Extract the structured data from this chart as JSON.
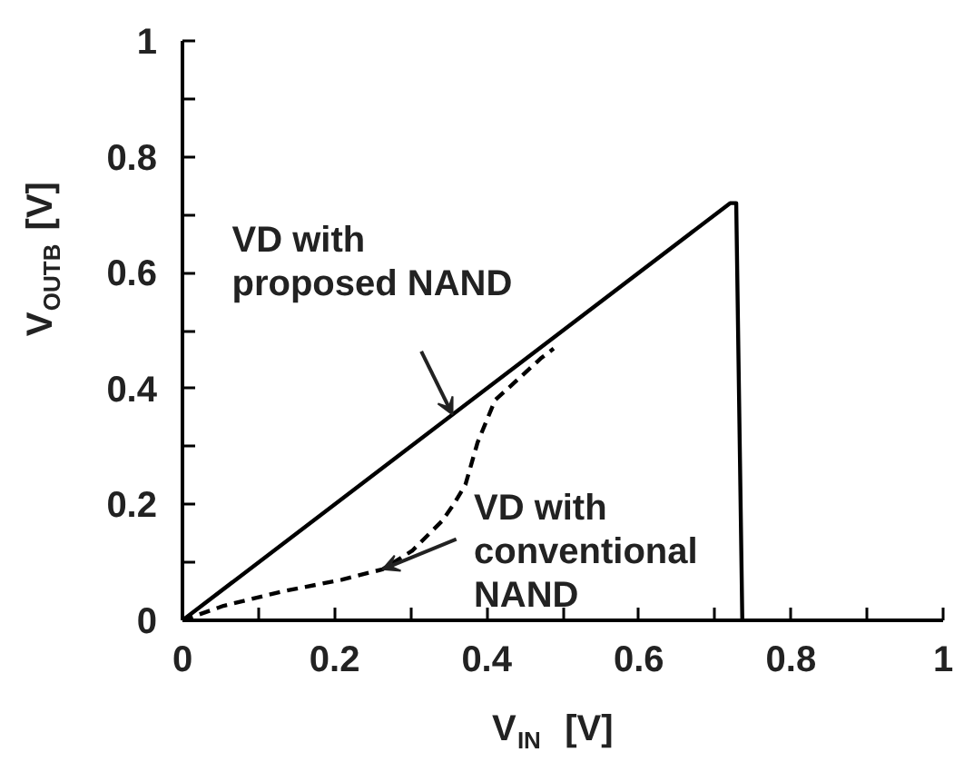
{
  "chart_data": {
    "type": "line",
    "xlabel": "V$_{IN}$ [V]",
    "ylabel": "V$_{OUTB}$ [V]",
    "xlim": [
      0,
      1
    ],
    "ylim": [
      0,
      1
    ],
    "xticks": [
      0,
      {
        "value": 0.1,
        "label": null
      },
      0.2,
      {
        "value": 0.3,
        "label": null
      },
      0.4,
      {
        "value": 0.5,
        "label": null
      },
      0.6,
      {
        "value": 0.7,
        "label": null
      },
      0.8,
      {
        "value": 0.9,
        "label": null
      },
      1
    ],
    "yticks": [
      0,
      {
        "value": 0.1,
        "label": null
      },
      0.2,
      {
        "value": 0.3,
        "label": null
      },
      0.4,
      {
        "value": 0.5,
        "label": null
      },
      0.6,
      {
        "value": 0.7,
        "label": null
      },
      0.8,
      {
        "value": 0.9,
        "label": null
      },
      1
    ],
    "grid": false,
    "marker": "none",
    "series": [
      {
        "color": "#000000",
        "line_style": "solid",
        "x": [
          0,
          0.72,
          0.728,
          0.736
        ],
        "values": [
          0,
          0.72,
          0.72,
          0
        ]
      },
      {
        "color": "#000000",
        "line_style": "dashed",
        "x": [
          0,
          0.054,
          0.132,
          0.209,
          0.263,
          0.302,
          0.341,
          0.356,
          0.372,
          0.388,
          0.411,
          0.442,
          0.472,
          0.488
        ],
        "values": [
          0,
          0.025,
          0.05,
          0.07,
          0.088,
          0.12,
          0.171,
          0.199,
          0.234,
          0.307,
          0.38,
          0.417,
          0.453,
          0.469
        ]
      }
    ],
    "annotations": [
      {
        "text": "VD with\nproposed NAND",
        "x": 0.355,
        "y": 0.355
      },
      {
        "text": "VD with\nconventional\nNAND",
        "x": 0.263,
        "y": 0.088
      }
    ]
  }
}
